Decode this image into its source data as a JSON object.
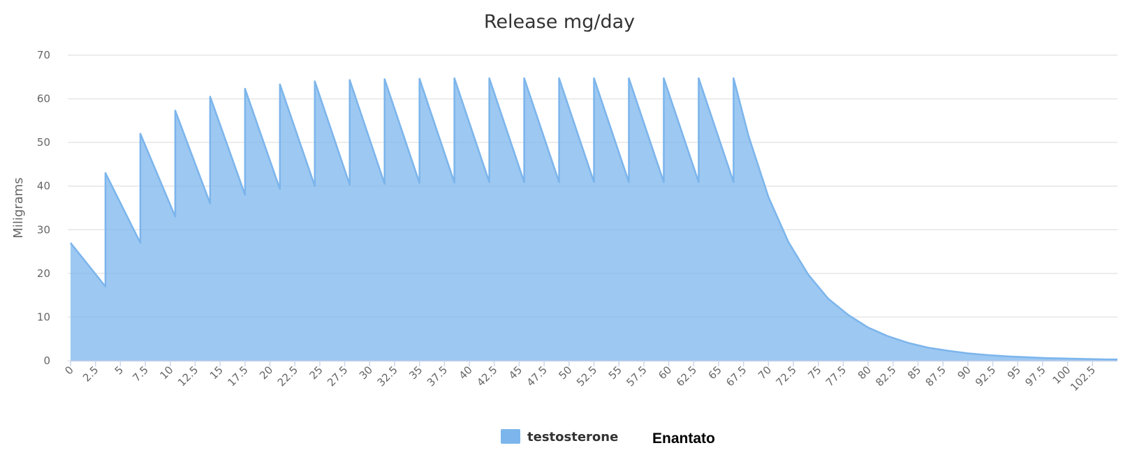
{
  "chart_data": {
    "type": "area",
    "title": "Release mg/day",
    "ylabel": "Miligrams",
    "xlabel": "",
    "ylim": [
      0,
      70
    ],
    "xlim": [
      0,
      105
    ],
    "yticks": [
      0,
      10,
      20,
      30,
      40,
      50,
      60,
      70
    ],
    "xticks": [
      0,
      2.5,
      5,
      7.5,
      10,
      12.5,
      15,
      17.5,
      20,
      22.5,
      25,
      27.5,
      30,
      32.5,
      35,
      37.5,
      40,
      42.5,
      45,
      47.5,
      50,
      52.5,
      55,
      57.5,
      60,
      62.5,
      65,
      67.5,
      70,
      72.5,
      75,
      77.5,
      80,
      82.5,
      85,
      87.5,
      90,
      92.5,
      95,
      97.5,
      100,
      102.5
    ],
    "grid": true,
    "legend_position": "bottom-center",
    "color": "#7cb5ec",
    "series": [
      {
        "name": "testosterone",
        "x": [
          0,
          3.5,
          3.5,
          7,
          7,
          10.5,
          10.5,
          14,
          14,
          17.5,
          17.5,
          21,
          21,
          24.5,
          24.5,
          28,
          28,
          31.5,
          31.5,
          35,
          35,
          38.5,
          38.5,
          42,
          42,
          45.5,
          45.5,
          49,
          49,
          52.5,
          52.5,
          56,
          56,
          59.5,
          59.5,
          63,
          63,
          66.5,
          66.5,
          68,
          70,
          72,
          74,
          76,
          78,
          80,
          82,
          84,
          86,
          88,
          90,
          92,
          94,
          96,
          98,
          100,
          102,
          104,
          105
        ],
        "values": [
          27,
          17,
          43,
          27,
          52,
          33,
          57.3,
          36,
          60.5,
          38,
          62.3,
          39.3,
          63.3,
          40,
          64,
          40.3,
          64.3,
          40.5,
          64.5,
          40.7,
          64.6,
          40.8,
          64.7,
          40.9,
          64.7,
          40.9,
          64.7,
          40.9,
          64.7,
          40.9,
          64.7,
          40.9,
          64.7,
          40.9,
          64.7,
          40.9,
          64.7,
          40.9,
          64.7,
          51.5,
          37.5,
          27.2,
          19.7,
          14.2,
          10.5,
          7.6,
          5.6,
          4.1,
          3.0,
          2.3,
          1.7,
          1.3,
          1.0,
          0.8,
          0.6,
          0.5,
          0.4,
          0.3,
          0.3
        ]
      }
    ]
  },
  "legend": {
    "series_label": "testosterone",
    "suffix_label": "Enantato"
  }
}
